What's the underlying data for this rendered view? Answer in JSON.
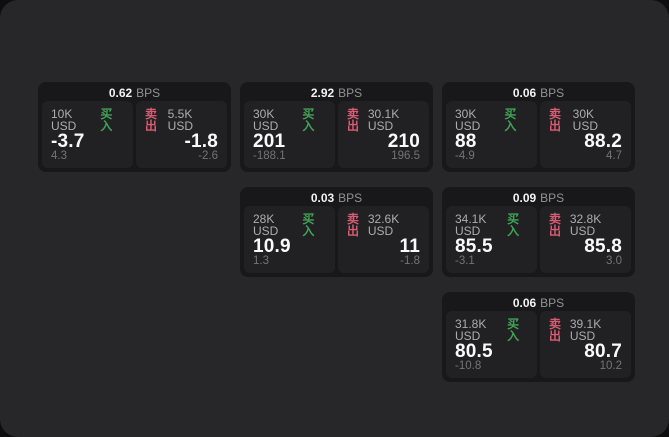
{
  "labels": {
    "bps_unit": "BPS",
    "buy": "买入",
    "sell": "卖出"
  },
  "colors": {
    "surface_bg": "#27272a",
    "card_bg": "#18181a",
    "panel_bg": "#212124",
    "buy_green": "#40a455",
    "sell_red": "#d95c72",
    "price_text": "#fafafa",
    "muted_text": "#737378"
  },
  "cards": [
    {
      "bps": "0.62",
      "buy": {
        "size": "10K USD",
        "price": "-3.7",
        "delta": "4.3"
      },
      "sell": {
        "size": "5.5K USD",
        "price": "-1.8",
        "delta": "-2.6"
      }
    },
    {
      "bps": "2.92",
      "buy": {
        "size": "30K USD",
        "price": "201",
        "delta": "-188.1"
      },
      "sell": {
        "size": "30.1K USD",
        "price": "210",
        "delta": "196.5"
      }
    },
    {
      "bps": "0.06",
      "buy": {
        "size": "30K USD",
        "price": "88",
        "delta": "-4.9"
      },
      "sell": {
        "size": "30K USD",
        "price": "88.2",
        "delta": "4.7"
      }
    },
    {
      "bps": "0.03",
      "buy": {
        "size": "28K USD",
        "price": "10.9",
        "delta": "1.3"
      },
      "sell": {
        "size": "32.6K USD",
        "price": "11",
        "delta": "-1.8"
      }
    },
    {
      "bps": "0.09",
      "buy": {
        "size": "34.1K USD",
        "price": "85.5",
        "delta": "-3.1"
      },
      "sell": {
        "size": "32.8K USD",
        "price": "85.8",
        "delta": "3.0"
      }
    },
    {
      "bps": "0.06",
      "buy": {
        "size": "31.8K USD",
        "price": "80.5",
        "delta": "-10.8"
      },
      "sell": {
        "size": "39.1K USD",
        "price": "80.7",
        "delta": "10.2"
      }
    }
  ]
}
